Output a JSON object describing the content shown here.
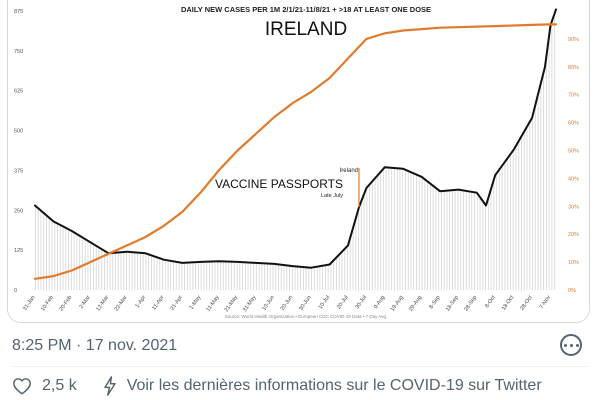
{
  "tweet": {
    "timestamp": "8:25 PM · 17 nov. 2021",
    "like_count": "2,5 k",
    "covid_info_link": "Voir les dernières informations sur le COVID-19 sur Twitter",
    "icons": {
      "like": "heart-icon",
      "info": "lightning-icon",
      "more": "more-options-icon"
    }
  },
  "chart_data": {
    "type": "line",
    "title": "DAILY NEW CASES PER 1M 2/1/21-11/8/21 + >18 AT LEAST ONE DOSE",
    "subtitle": "IRELAND",
    "source": "Source: World Health Organization • European CDC COVID-19 Data • 7 Day Avg.",
    "annotation": {
      "label": "VACCINE PASSPORTS",
      "small_top": "Ireland",
      "small_bottom": "Late July",
      "x": "2021-07-26"
    },
    "y_left": {
      "ticks": [
        "0",
        "125",
        "250",
        "375",
        "500",
        "625",
        "750",
        "875"
      ],
      "range": [
        0,
        875
      ]
    },
    "y_right": {
      "ticks": [
        "0%",
        "10%",
        "20%",
        "30%",
        "40%",
        "50%",
        "60%",
        "70%",
        "80%",
        "90%"
      ],
      "range": [
        0,
        100
      ]
    },
    "x_ticks": [
      "31-Jan",
      "10-Feb",
      "20-Feb",
      "2-Mar",
      "12-Mar",
      "22-Mar",
      "1-Apr",
      "11-Apr",
      "21-Apr",
      "1-May",
      "11-May",
      "21-May",
      "31-May",
      "10-Jun",
      "20-Jun",
      "30-Jun",
      "10-Jul",
      "20-Jul",
      "30-Jul",
      "9-Aug",
      "19-Aug",
      "29-Aug",
      "8-Sep",
      "18-Sep",
      "28-Sep",
      "8-Oct",
      "18-Oct",
      "28-Oct",
      "7-Nov"
    ],
    "colors": {
      "cases": "#111111",
      "vaccination": "#e07b2e",
      "bars": "#d9d9d9"
    },
    "series": [
      {
        "label": "Daily new cases per 1M (7 day avg)",
        "axis": "left",
        "x": [
          "2021-01-31",
          "2021-02-10",
          "2021-02-20",
          "2021-03-02",
          "2021-03-12",
          "2021-03-22",
          "2021-04-01",
          "2021-04-11",
          "2021-04-21",
          "2021-05-01",
          "2021-05-11",
          "2021-05-21",
          "2021-05-31",
          "2021-06-10",
          "2021-06-20",
          "2021-06-30",
          "2021-07-10",
          "2021-07-20",
          "2021-07-26",
          "2021-07-30",
          "2021-08-09",
          "2021-08-19",
          "2021-08-29",
          "2021-09-08",
          "2021-09-18",
          "2021-09-28",
          "2021-10-03",
          "2021-10-08",
          "2021-10-18",
          "2021-10-28",
          "2021-11-04",
          "2021-11-07",
          "2021-11-10"
        ],
        "values": [
          265,
          215,
          185,
          150,
          115,
          120,
          115,
          95,
          85,
          88,
          90,
          88,
          85,
          82,
          75,
          70,
          80,
          140,
          260,
          320,
          385,
          380,
          355,
          310,
          315,
          305,
          265,
          360,
          440,
          540,
          700,
          830,
          880
        ]
      },
      {
        "label": "Adults (>18) with at least one dose",
        "axis": "right",
        "x": [
          "2021-01-31",
          "2021-02-10",
          "2021-02-20",
          "2021-03-02",
          "2021-03-12",
          "2021-03-22",
          "2021-04-01",
          "2021-04-11",
          "2021-04-21",
          "2021-05-01",
          "2021-05-11",
          "2021-05-21",
          "2021-05-31",
          "2021-06-10",
          "2021-06-20",
          "2021-06-30",
          "2021-07-10",
          "2021-07-20",
          "2021-07-30",
          "2021-08-09",
          "2021-08-19",
          "2021-08-29",
          "2021-09-08",
          "2021-09-18",
          "2021-09-28",
          "2021-10-08",
          "2021-10-18",
          "2021-10-28",
          "2021-11-07",
          "2021-11-10"
        ],
        "values": [
          4,
          5,
          7,
          10,
          13,
          16,
          19,
          23,
          28,
          35,
          43,
          50,
          56,
          62,
          67,
          71,
          76,
          83,
          90,
          92,
          93,
          93.5,
          94,
          94.2,
          94.4,
          94.6,
          94.8,
          95,
          95.2,
          95.2
        ]
      }
    ]
  }
}
